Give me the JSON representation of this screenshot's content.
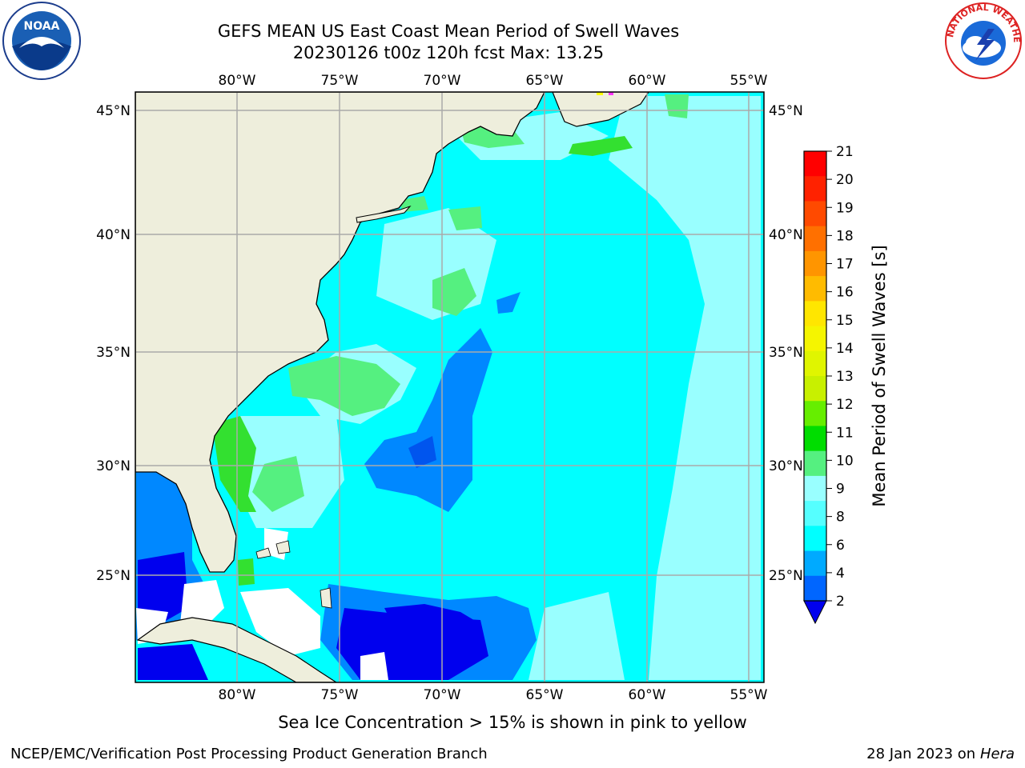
{
  "title_line1": "GEFS MEAN US East Coast Mean Period of Swell Waves",
  "title_line2": "20230126 t00z 120h fcst   Max: 13.25",
  "lon_labels": [
    "80°W",
    "75°W",
    "70°W",
    "65°W",
    "60°W",
    "55°W"
  ],
  "lat_labels": [
    "45°N",
    "40°N",
    "35°N",
    "30°N",
    "25°N"
  ],
  "colorbar": {
    "label": "Mean Period of Swell Waves [s]",
    "ticks": [
      "21",
      "20",
      "19",
      "18",
      "17",
      "16",
      "15",
      "14",
      "13",
      "12",
      "11",
      "10",
      "9",
      "8",
      "6",
      "4",
      "2"
    ],
    "colors": [
      "#ff0000",
      "#ff2200",
      "#ff4a00",
      "#ff7000",
      "#ff9500",
      "#ffbb00",
      "#ffe600",
      "#f5f500",
      "#e0f500",
      "#c8f000",
      "#66ee00",
      "#00dd00",
      "#55f080",
      "#99ffff",
      "#55ffff",
      "#00ffff",
      "#00aaff",
      "#0066ff"
    ],
    "extend_color": "#0000ee"
  },
  "subtitle": "Sea Ice Concentration > 15% is shown in pink to yellow",
  "footer_left": "NCEP/EMC/Verification Post Processing Product Generation Branch",
  "footer_right_text": "28 Jan 2023 on ",
  "footer_right_host": "Hera",
  "logos": {
    "left": "NOAA",
    "right": "NATIONAL WEATHER SERVICE"
  },
  "colors": {
    "land": "#eeeedc",
    "grid": "#aaaaaa",
    "ocean_base": "#00ffff"
  }
}
